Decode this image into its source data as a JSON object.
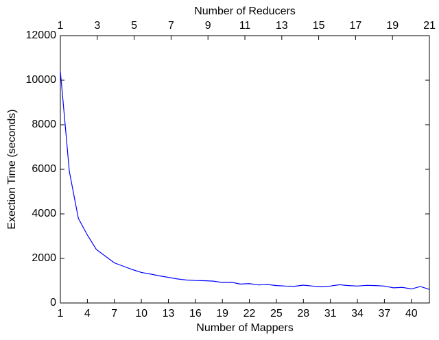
{
  "chart_data": {
    "type": "line",
    "xlabel": "Number of Mappers",
    "x2label": "Number of Reducers",
    "ylabel": "Exection Time (seconds)",
    "x": [
      1,
      2,
      3,
      4,
      5,
      6,
      7,
      8,
      9,
      10,
      11,
      12,
      13,
      14,
      15,
      16,
      17,
      18,
      19,
      20,
      21,
      22,
      23,
      24,
      25,
      26,
      27,
      28,
      29,
      30,
      31,
      32,
      33,
      34,
      35,
      36,
      37,
      38,
      39,
      40,
      41,
      42
    ],
    "series": [
      {
        "color": "#0000ff",
        "values": [
          10400,
          5900,
          3800,
          3050,
          2400,
          2100,
          1800,
          1650,
          1500,
          1370,
          1300,
          1220,
          1150,
          1080,
          1030,
          1010,
          1000,
          980,
          920,
          930,
          850,
          870,
          810,
          830,
          780,
          760,
          750,
          800,
          760,
          730,
          760,
          820,
          780,
          760,
          790,
          780,
          760,
          680,
          700,
          630,
          740,
          610
        ]
      }
    ],
    "xlim": [
      1,
      42
    ],
    "xticks": [
      1,
      4,
      7,
      10,
      13,
      16,
      19,
      22,
      25,
      28,
      31,
      34,
      37,
      40
    ],
    "x2lim": [
      1,
      21
    ],
    "x2ticks": [
      1,
      3,
      5,
      7,
      9,
      11,
      13,
      15,
      17,
      19,
      21
    ],
    "ylim": [
      0,
      12000
    ],
    "yticks": [
      0,
      2000,
      4000,
      6000,
      8000,
      10000,
      12000
    ]
  }
}
